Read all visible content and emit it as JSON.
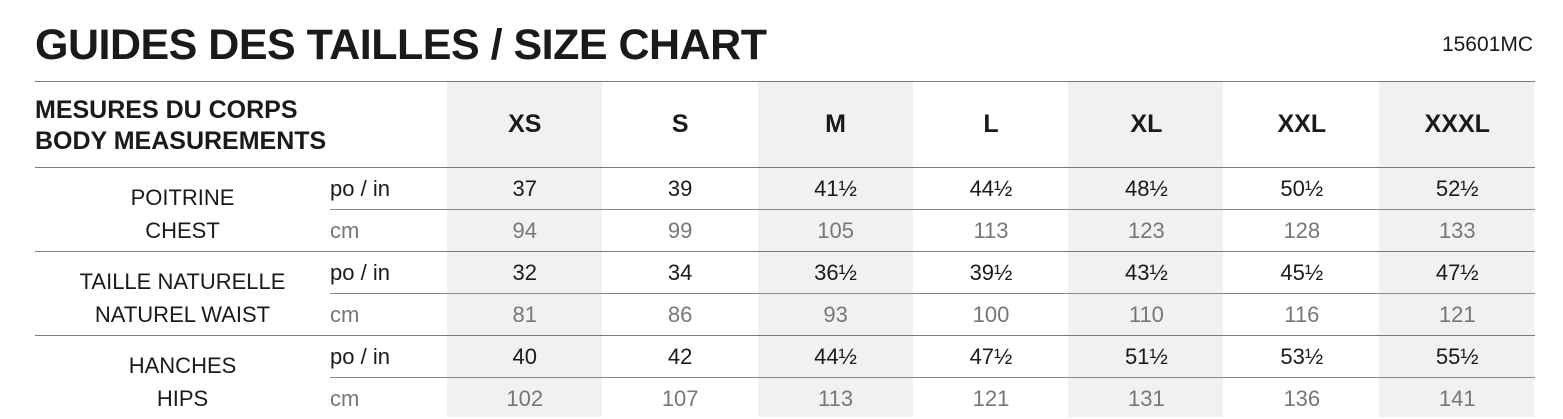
{
  "title": "GUIDES DES TAILLES / SIZE CHART",
  "code": "15601MC",
  "header": {
    "label_fr": "MESURES DU CORPS",
    "label_en": "BODY MEASUREMENTS",
    "sizes": [
      "XS",
      "S",
      "M",
      "L",
      "XL",
      "XXL",
      "XXXL"
    ]
  },
  "shade_color": "#f1f1f1",
  "rows": [
    {
      "fr": "POITRINE",
      "en": "CHEST",
      "in_label": "po / in",
      "cm_label": "cm",
      "in": [
        "37",
        "39",
        "41½",
        "44½",
        "48½",
        "50½",
        "52½"
      ],
      "cm": [
        "94",
        "99",
        "105",
        "113",
        "123",
        "128",
        "133"
      ]
    },
    {
      "fr": "TAILLE NATURELLE",
      "en": "NATUREL WAIST",
      "in_label": "po / in",
      "cm_label": "cm",
      "in": [
        "32",
        "34",
        "36½",
        "39½",
        "43½",
        "45½",
        "47½"
      ],
      "cm": [
        "81",
        "86",
        "93",
        "100",
        "110",
        "116",
        "121"
      ]
    },
    {
      "fr": "HANCHES",
      "en": "HIPS",
      "in_label": "po / in",
      "cm_label": "cm",
      "in": [
        "40",
        "42",
        "44½",
        "47½",
        "51½",
        "53½",
        "55½"
      ],
      "cm": [
        "102",
        "107",
        "113",
        "121",
        "131",
        "136",
        "141"
      ]
    }
  ]
}
